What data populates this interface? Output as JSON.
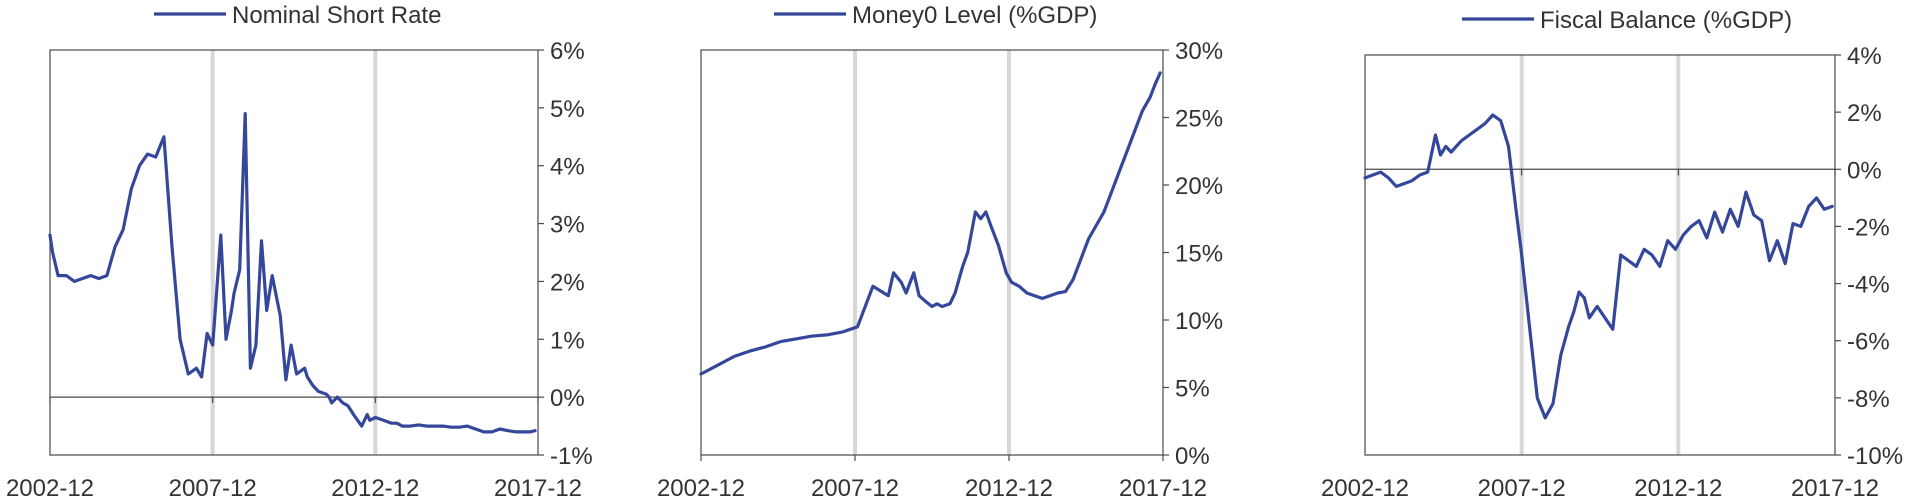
{
  "chart_data": [
    {
      "type": "line",
      "series": [
        {
          "name": "Nominal Short Rate",
          "color": "#34479a",
          "x": [
            2002.92,
            2003.0,
            2003.17,
            2003.42,
            2003.67,
            2003.92,
            2004.17,
            2004.42,
            2004.67,
            2004.92,
            2005.17,
            2005.42,
            2005.67,
            2005.92,
            2006.17,
            2006.42,
            2006.67,
            2006.92,
            2007.17,
            2007.42,
            2007.58,
            2007.75,
            2007.92,
            2008.17,
            2008.33,
            2008.5,
            2008.58,
            2008.75,
            2008.92,
            2009.08,
            2009.25,
            2009.42,
            2009.58,
            2009.75,
            2010.0,
            2010.17,
            2010.33,
            2010.5,
            2010.75,
            2010.83,
            2011.0,
            2011.17,
            2011.42,
            2011.5,
            2011.58,
            2011.75,
            2011.92,
            2012.08,
            2012.25,
            2012.5,
            2012.67,
            2012.75,
            2012.92,
            2013.17,
            2013.42,
            2013.58,
            2013.75,
            2014.0,
            2014.25,
            2014.5,
            2014.75,
            2015.0,
            2015.25,
            2015.5,
            2015.75,
            2016.0,
            2016.25,
            2016.5,
            2016.75,
            2017.0,
            2017.25,
            2017.5,
            2017.67,
            2017.83
          ],
          "y": [
            2.8,
            2.5,
            2.1,
            2.1,
            2.0,
            2.05,
            2.1,
            2.05,
            2.1,
            2.6,
            2.9,
            3.6,
            4.0,
            4.2,
            4.15,
            4.5,
            2.6,
            1.0,
            0.4,
            0.5,
            0.35,
            1.1,
            0.9,
            2.8,
            1.0,
            1.5,
            1.8,
            2.2,
            4.9,
            0.5,
            0.9,
            2.7,
            1.5,
            2.1,
            1.4,
            0.3,
            0.9,
            0.4,
            0.5,
            0.35,
            0.2,
            0.1,
            0.05,
            0.0,
            -0.1,
            0.0,
            -0.1,
            -0.15,
            -0.3,
            -0.5,
            -0.3,
            -0.4,
            -0.35,
            -0.4,
            -0.45,
            -0.45,
            -0.5,
            -0.5,
            -0.48,
            -0.5,
            -0.5,
            -0.5,
            -0.52,
            -0.52,
            -0.5,
            -0.55,
            -0.6,
            -0.6,
            -0.55,
            -0.58,
            -0.6,
            -0.6,
            -0.6,
            -0.58
          ]
        }
      ],
      "xlim": [
        2002.92,
        2017.92
      ],
      "ylim": [
        -1,
        6
      ],
      "x_ticks": [
        "2002-12",
        "2007-12",
        "2012-12",
        "2017-12"
      ],
      "x_tick_values": [
        2002.92,
        2007.92,
        2012.92,
        2017.92
      ],
      "y_ticks": [
        "6%",
        "5%",
        "4%",
        "3%",
        "2%",
        "1%",
        "0%",
        "-1%"
      ],
      "y_tick_values": [
        6,
        5,
        4,
        3,
        2,
        1,
        0,
        -1
      ],
      "y_axis_side": "right",
      "vertical_markers": [
        2007.92,
        2012.92
      ],
      "zero_line": true,
      "legend_position": "top"
    },
    {
      "type": "line",
      "series": [
        {
          "name": "Money0 Level (%GDP)",
          "color": "#34479a",
          "x": [
            2002.92,
            2003.5,
            2004.0,
            2004.5,
            2005.0,
            2005.5,
            2006.0,
            2006.5,
            2007.0,
            2007.5,
            2008.0,
            2008.5,
            2009.0,
            2009.17,
            2009.42,
            2009.58,
            2009.83,
            2010.0,
            2010.25,
            2010.42,
            2010.58,
            2010.75,
            2011.0,
            2011.17,
            2011.42,
            2011.58,
            2011.83,
            2012.0,
            2012.17,
            2012.33,
            2012.58,
            2012.83,
            2013.0,
            2013.25,
            2013.5,
            2013.75,
            2014.0,
            2014.25,
            2014.5,
            2014.75,
            2015.0,
            2015.25,
            2015.5,
            2015.75,
            2016.0,
            2016.25,
            2016.5,
            2016.75,
            2017.0,
            2017.25,
            2017.5,
            2017.67,
            2017.83
          ],
          "y": [
            6.0,
            6.7,
            7.3,
            7.7,
            8.0,
            8.4,
            8.6,
            8.8,
            8.9,
            9.1,
            9.5,
            12.5,
            11.8,
            13.5,
            12.8,
            12.0,
            13.5,
            11.8,
            11.3,
            11.0,
            11.2,
            11.0,
            11.2,
            12.0,
            14.0,
            15.0,
            18.0,
            17.5,
            18.0,
            17.0,
            15.5,
            13.5,
            12.8,
            12.5,
            12.0,
            11.8,
            11.6,
            11.8,
            12.0,
            12.1,
            13.0,
            14.5,
            16.0,
            17.0,
            18.0,
            19.5,
            21.0,
            22.5,
            24.0,
            25.5,
            26.5,
            27.5,
            28.3
          ]
        }
      ],
      "xlim": [
        2002.92,
        2017.92
      ],
      "ylim": [
        0,
        30
      ],
      "x_ticks": [
        "2002-12",
        "2007-12",
        "2012-12",
        "2017-12"
      ],
      "x_tick_values": [
        2002.92,
        2007.92,
        2012.92,
        2017.92
      ],
      "y_ticks": [
        "30%",
        "25%",
        "20%",
        "15%",
        "10%",
        "5%",
        "0%"
      ],
      "y_tick_values": [
        30,
        25,
        20,
        15,
        10,
        5,
        0
      ],
      "y_axis_side": "right",
      "vertical_markers": [
        2007.92,
        2012.92
      ],
      "zero_line": false,
      "legend_position": "top"
    },
    {
      "type": "line",
      "series": [
        {
          "name": "Fiscal Balance (%GDP)",
          "color": "#34479a",
          "x": [
            2002.92,
            2003.17,
            2003.42,
            2003.67,
            2003.92,
            2004.17,
            2004.42,
            2004.67,
            2004.92,
            2005.17,
            2005.33,
            2005.5,
            2005.67,
            2005.83,
            2006.0,
            2006.25,
            2006.5,
            2006.75,
            2007.0,
            2007.25,
            2007.5,
            2007.75,
            2007.92,
            2008.17,
            2008.42,
            2008.67,
            2008.92,
            2009.17,
            2009.42,
            2009.58,
            2009.75,
            2009.92,
            2010.08,
            2010.33,
            2010.58,
            2010.83,
            2011.08,
            2011.33,
            2011.58,
            2011.83,
            2012.08,
            2012.33,
            2012.58,
            2012.83,
            2013.08,
            2013.33,
            2013.58,
            2013.83,
            2014.08,
            2014.33,
            2014.58,
            2014.83,
            2015.08,
            2015.33,
            2015.58,
            2015.83,
            2016.08,
            2016.33,
            2016.58,
            2016.83,
            2017.08,
            2017.33,
            2017.58,
            2017.83
          ],
          "y": [
            -0.3,
            -0.2,
            -0.1,
            -0.3,
            -0.6,
            -0.5,
            -0.4,
            -0.2,
            -0.1,
            1.2,
            0.5,
            0.8,
            0.6,
            0.8,
            1.0,
            1.2,
            1.4,
            1.6,
            1.9,
            1.7,
            0.8,
            -1.5,
            -3.0,
            -5.5,
            -8.0,
            -8.7,
            -8.2,
            -6.5,
            -5.5,
            -5.0,
            -4.3,
            -4.5,
            -5.2,
            -4.8,
            -5.2,
            -5.6,
            -3.0,
            -3.2,
            -3.4,
            -2.8,
            -3.0,
            -3.4,
            -2.5,
            -2.8,
            -2.3,
            -2.0,
            -1.8,
            -2.4,
            -1.5,
            -2.2,
            -1.4,
            -2.0,
            -0.8,
            -1.6,
            -1.8,
            -3.2,
            -2.5,
            -3.3,
            -1.9,
            -2.0,
            -1.3,
            -1.0,
            -1.4,
            -1.3
          ]
        }
      ],
      "xlim": [
        2002.92,
        2017.92
      ],
      "ylim": [
        -10,
        4
      ],
      "x_ticks": [
        "2002-12",
        "2007-12",
        "2012-12",
        "2017-12"
      ],
      "x_tick_values": [
        2002.92,
        2007.92,
        2012.92,
        2017.92
      ],
      "y_ticks": [
        "4%",
        "2%",
        "0%",
        "-2%",
        "-4%",
        "-6%",
        "-8%",
        "-10%"
      ],
      "y_tick_values": [
        4,
        2,
        0,
        -2,
        -4,
        -6,
        -8,
        -10
      ],
      "y_axis_side": "right",
      "vertical_markers": [
        2007.92,
        2012.92
      ],
      "zero_line": true,
      "legend_position": "top"
    }
  ]
}
